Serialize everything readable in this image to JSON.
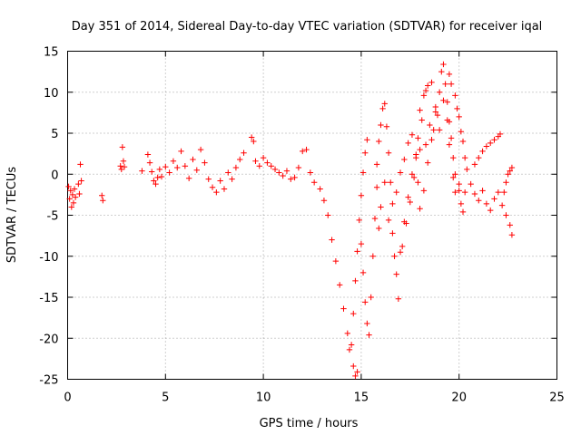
{
  "chart_data": {
    "type": "scatter",
    "title": "Day 351 of 2014, Sidereal Day-to-day VTEC variation (SDTVAR) for receiver iqal",
    "xlabel": "GPS time / hours",
    "ylabel": "SDTVAR / TECUs",
    "xlim": [
      0,
      25
    ],
    "ylim": [
      -25,
      15
    ],
    "xticks": [
      0,
      5,
      10,
      15,
      20,
      25
    ],
    "yticks": [
      -25,
      -20,
      -15,
      -10,
      -5,
      0,
      5,
      10,
      15
    ],
    "grid": true,
    "marker": "+",
    "color": "#ff0000",
    "series": [
      {
        "name": "SDTVAR",
        "points": [
          [
            0.05,
            -1.5
          ],
          [
            0.1,
            -3.0
          ],
          [
            0.15,
            -2.0
          ],
          [
            0.2,
            -4.0
          ],
          [
            0.25,
            -2.5
          ],
          [
            0.3,
            -3.5
          ],
          [
            0.35,
            -1.8
          ],
          [
            0.4,
            -2.8
          ],
          [
            0.55,
            -1.2
          ],
          [
            0.6,
            -2.4
          ],
          [
            0.65,
            1.2
          ],
          [
            0.7,
            -0.8
          ],
          [
            1.75,
            -2.6
          ],
          [
            1.8,
            -3.2
          ],
          [
            2.7,
            1.0
          ],
          [
            2.75,
            0.6
          ],
          [
            2.8,
            3.3
          ],
          [
            2.85,
            1.6
          ],
          [
            2.9,
            0.9
          ],
          [
            3.8,
            0.4
          ],
          [
            4.1,
            2.4
          ],
          [
            4.2,
            1.4
          ],
          [
            4.3,
            0.3
          ],
          [
            4.4,
            -0.8
          ],
          [
            4.5,
            -1.2
          ],
          [
            4.6,
            -0.4
          ],
          [
            4.7,
            0.6
          ],
          [
            4.8,
            -0.3
          ],
          [
            5.0,
            0.9
          ],
          [
            5.2,
            0.2
          ],
          [
            5.4,
            1.6
          ],
          [
            5.6,
            0.8
          ],
          [
            5.8,
            2.8
          ],
          [
            6.0,
            1.0
          ],
          [
            6.2,
            -0.5
          ],
          [
            6.4,
            1.8
          ],
          [
            6.6,
            0.5
          ],
          [
            6.8,
            3.0
          ],
          [
            7.0,
            1.4
          ],
          [
            7.2,
            -0.6
          ],
          [
            7.4,
            -1.6
          ],
          [
            7.6,
            -2.2
          ],
          [
            7.8,
            -0.8
          ],
          [
            8.0,
            -1.8
          ],
          [
            8.2,
            0.2
          ],
          [
            8.4,
            -0.6
          ],
          [
            8.6,
            0.8
          ],
          [
            8.8,
            1.8
          ],
          [
            9.0,
            2.6
          ],
          [
            9.4,
            4.5
          ],
          [
            9.5,
            4.0
          ],
          [
            9.6,
            1.6
          ],
          [
            9.8,
            1.0
          ],
          [
            10.0,
            2.0
          ],
          [
            10.2,
            1.4
          ],
          [
            10.4,
            1.0
          ],
          [
            10.6,
            0.6
          ],
          [
            10.8,
            0.2
          ],
          [
            11.0,
            -0.2
          ],
          [
            11.2,
            0.4
          ],
          [
            11.4,
            -0.6
          ],
          [
            11.6,
            -0.4
          ],
          [
            11.8,
            0.8
          ],
          [
            12.0,
            2.8
          ],
          [
            12.2,
            3.0
          ],
          [
            12.4,
            0.2
          ],
          [
            12.6,
            -1.0
          ],
          [
            12.9,
            -1.8
          ],
          [
            13.1,
            -3.2
          ],
          [
            13.3,
            -5.0
          ],
          [
            13.5,
            -8.0
          ],
          [
            13.7,
            -10.6
          ],
          [
            13.9,
            -13.5
          ],
          [
            14.1,
            -16.4
          ],
          [
            14.3,
            -19.4
          ],
          [
            14.4,
            -21.4
          ],
          [
            14.5,
            -20.8
          ],
          [
            14.6,
            -17.0
          ],
          [
            14.7,
            -13.0
          ],
          [
            14.8,
            -9.4
          ],
          [
            14.9,
            -5.6
          ],
          [
            15.0,
            -2.6
          ],
          [
            15.1,
            0.2
          ],
          [
            15.2,
            2.6
          ],
          [
            15.3,
            4.2
          ],
          [
            14.6,
            -23.4
          ],
          [
            14.7,
            -24.6
          ],
          [
            14.8,
            -24.1
          ],
          [
            15.0,
            -8.5
          ],
          [
            15.1,
            -12.0
          ],
          [
            15.2,
            -15.6
          ],
          [
            15.3,
            -18.2
          ],
          [
            15.4,
            -19.6
          ],
          [
            15.5,
            -15.0
          ],
          [
            15.6,
            -10.0
          ],
          [
            15.7,
            -5.4
          ],
          [
            15.8,
            -1.6
          ],
          [
            15.8,
            1.2
          ],
          [
            15.9,
            4.0
          ],
          [
            16.0,
            6.0
          ],
          [
            16.1,
            8.0
          ],
          [
            16.2,
            8.6
          ],
          [
            16.3,
            5.8
          ],
          [
            16.4,
            2.6
          ],
          [
            16.5,
            -1.0
          ],
          [
            16.6,
            -3.6
          ],
          [
            16.8,
            -2.2
          ],
          [
            17.0,
            0.2
          ],
          [
            17.2,
            1.8
          ],
          [
            17.4,
            3.8
          ],
          [
            17.6,
            4.8
          ],
          [
            17.8,
            2.0
          ],
          [
            17.9,
            -1.0
          ],
          [
            18.0,
            -4.2
          ],
          [
            18.2,
            -2.0
          ],
          [
            18.4,
            1.4
          ],
          [
            18.6,
            4.2
          ],
          [
            18.8,
            8.2
          ],
          [
            19.0,
            10.0
          ],
          [
            19.1,
            12.5
          ],
          [
            19.2,
            13.4
          ],
          [
            19.3,
            11.0
          ],
          [
            19.4,
            8.8
          ],
          [
            19.5,
            6.4
          ],
          [
            19.6,
            4.4
          ],
          [
            19.7,
            2.0
          ],
          [
            19.8,
            0.0
          ],
          [
            20.0,
            -2.0
          ],
          [
            20.1,
            -3.6
          ],
          [
            20.2,
            -4.6
          ],
          [
            20.3,
            -2.2
          ],
          [
            20.4,
            0.6
          ],
          [
            20.6,
            -1.2
          ],
          [
            20.8,
            -2.4
          ],
          [
            21.0,
            -3.2
          ],
          [
            21.2,
            -2.0
          ],
          [
            21.4,
            -3.6
          ],
          [
            21.6,
            -4.4
          ],
          [
            21.8,
            -3.0
          ],
          [
            22.0,
            -2.2
          ],
          [
            22.2,
            -3.8
          ],
          [
            22.4,
            -5.0
          ],
          [
            22.6,
            -6.2
          ],
          [
            22.7,
            -7.4
          ],
          [
            15.9,
            -6.6
          ],
          [
            16.0,
            -4.0
          ],
          [
            16.2,
            -1.0
          ],
          [
            16.4,
            -5.6
          ],
          [
            16.6,
            -7.2
          ],
          [
            16.7,
            -10.0
          ],
          [
            16.8,
            -12.2
          ],
          [
            16.9,
            -15.2
          ],
          [
            17.1,
            -8.8
          ],
          [
            17.3,
            -6.0
          ],
          [
            17.5,
            -3.4
          ],
          [
            17.7,
            -0.4
          ],
          [
            17.9,
            4.4
          ],
          [
            18.0,
            3.0
          ],
          [
            18.1,
            6.6
          ],
          [
            18.2,
            9.6
          ],
          [
            18.3,
            10.2
          ],
          [
            18.4,
            10.8
          ],
          [
            18.6,
            11.2
          ],
          [
            18.8,
            7.6
          ],
          [
            19.0,
            5.4
          ],
          [
            19.2,
            9.0
          ],
          [
            19.4,
            6.6
          ],
          [
            19.5,
            3.6
          ],
          [
            19.7,
            -0.4
          ],
          [
            19.8,
            -2.2
          ],
          [
            20.0,
            -1.2
          ],
          [
            20.8,
            1.2
          ],
          [
            21.0,
            2.0
          ],
          [
            21.2,
            2.8
          ],
          [
            21.4,
            3.4
          ],
          [
            21.6,
            3.8
          ],
          [
            21.8,
            4.2
          ],
          [
            22.0,
            4.6
          ],
          [
            22.1,
            4.9
          ],
          [
            22.3,
            -2.2
          ],
          [
            22.4,
            -1.0
          ],
          [
            22.5,
            0.0
          ],
          [
            22.6,
            0.4
          ],
          [
            22.7,
            0.8
          ],
          [
            19.5,
            12.2
          ],
          [
            19.6,
            11.0
          ],
          [
            19.8,
            9.6
          ],
          [
            19.9,
            8.0
          ],
          [
            20.0,
            7.0
          ],
          [
            20.1,
            5.2
          ],
          [
            20.2,
            4.0
          ],
          [
            20.3,
            2.0
          ],
          [
            17.0,
            -9.5
          ],
          [
            17.2,
            -5.8
          ],
          [
            17.4,
            -2.8
          ],
          [
            17.6,
            0.0
          ],
          [
            17.8,
            2.4
          ],
          [
            18.0,
            7.8
          ],
          [
            18.3,
            3.6
          ],
          [
            18.5,
            6.0
          ],
          [
            18.7,
            5.4
          ],
          [
            18.9,
            7.2
          ]
        ]
      }
    ]
  }
}
